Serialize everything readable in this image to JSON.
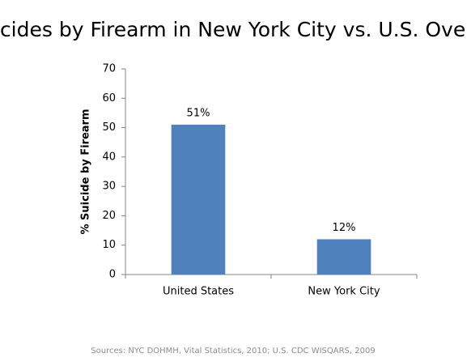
{
  "chart_data": {
    "type": "bar",
    "title": "Suicides by Firearm in New York City vs. U.S. Overall",
    "y_label": "% Suicide by Firearm",
    "categories": [
      "United States",
      "New York City"
    ],
    "values": [
      51,
      12
    ],
    "value_labels": [
      "51%",
      "12%"
    ],
    "color": "#4f81bd",
    "ylim": [
      0,
      70
    ],
    "yticks": [
      0,
      10,
      20,
      30,
      40,
      50,
      60,
      70
    ],
    "grid": false,
    "source": "Sources: NYC DOHMH, Vital Statistics, 2010; U.S. CDC WISQARS, 2009"
  }
}
